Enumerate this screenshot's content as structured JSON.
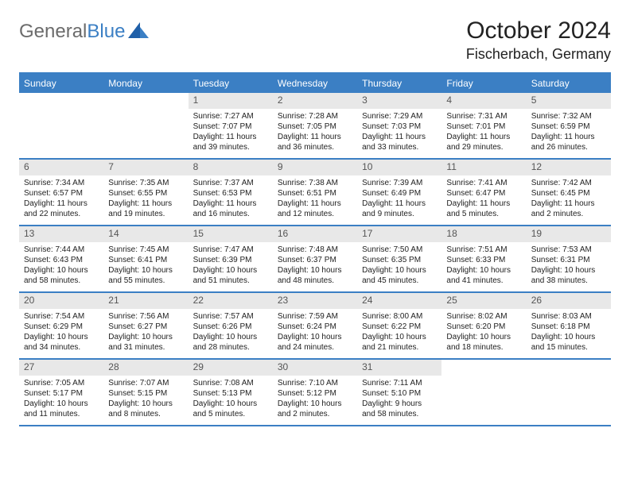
{
  "logo": {
    "text_gray": "General",
    "text_blue": "Blue"
  },
  "title": "October 2024",
  "location": "Fischerbach, Germany",
  "colors": {
    "header_bg": "#3b7fc4",
    "header_text": "#ffffff",
    "numbar_bg": "#e8e8e8",
    "border": "#3b7fc4",
    "logo_gray": "#6b6b6b",
    "logo_blue": "#3b7fc4"
  },
  "day_headers": [
    "Sunday",
    "Monday",
    "Tuesday",
    "Wednesday",
    "Thursday",
    "Friday",
    "Saturday"
  ],
  "weeks": [
    [
      {
        "num": "",
        "sunrise": "",
        "sunset": "",
        "daylight": ""
      },
      {
        "num": "",
        "sunrise": "",
        "sunset": "",
        "daylight": ""
      },
      {
        "num": "1",
        "sunrise": "Sunrise: 7:27 AM",
        "sunset": "Sunset: 7:07 PM",
        "daylight": "Daylight: 11 hours and 39 minutes."
      },
      {
        "num": "2",
        "sunrise": "Sunrise: 7:28 AM",
        "sunset": "Sunset: 7:05 PM",
        "daylight": "Daylight: 11 hours and 36 minutes."
      },
      {
        "num": "3",
        "sunrise": "Sunrise: 7:29 AM",
        "sunset": "Sunset: 7:03 PM",
        "daylight": "Daylight: 11 hours and 33 minutes."
      },
      {
        "num": "4",
        "sunrise": "Sunrise: 7:31 AM",
        "sunset": "Sunset: 7:01 PM",
        "daylight": "Daylight: 11 hours and 29 minutes."
      },
      {
        "num": "5",
        "sunrise": "Sunrise: 7:32 AM",
        "sunset": "Sunset: 6:59 PM",
        "daylight": "Daylight: 11 hours and 26 minutes."
      }
    ],
    [
      {
        "num": "6",
        "sunrise": "Sunrise: 7:34 AM",
        "sunset": "Sunset: 6:57 PM",
        "daylight": "Daylight: 11 hours and 22 minutes."
      },
      {
        "num": "7",
        "sunrise": "Sunrise: 7:35 AM",
        "sunset": "Sunset: 6:55 PM",
        "daylight": "Daylight: 11 hours and 19 minutes."
      },
      {
        "num": "8",
        "sunrise": "Sunrise: 7:37 AM",
        "sunset": "Sunset: 6:53 PM",
        "daylight": "Daylight: 11 hours and 16 minutes."
      },
      {
        "num": "9",
        "sunrise": "Sunrise: 7:38 AM",
        "sunset": "Sunset: 6:51 PM",
        "daylight": "Daylight: 11 hours and 12 minutes."
      },
      {
        "num": "10",
        "sunrise": "Sunrise: 7:39 AM",
        "sunset": "Sunset: 6:49 PM",
        "daylight": "Daylight: 11 hours and 9 minutes."
      },
      {
        "num": "11",
        "sunrise": "Sunrise: 7:41 AM",
        "sunset": "Sunset: 6:47 PM",
        "daylight": "Daylight: 11 hours and 5 minutes."
      },
      {
        "num": "12",
        "sunrise": "Sunrise: 7:42 AM",
        "sunset": "Sunset: 6:45 PM",
        "daylight": "Daylight: 11 hours and 2 minutes."
      }
    ],
    [
      {
        "num": "13",
        "sunrise": "Sunrise: 7:44 AM",
        "sunset": "Sunset: 6:43 PM",
        "daylight": "Daylight: 10 hours and 58 minutes."
      },
      {
        "num": "14",
        "sunrise": "Sunrise: 7:45 AM",
        "sunset": "Sunset: 6:41 PM",
        "daylight": "Daylight: 10 hours and 55 minutes."
      },
      {
        "num": "15",
        "sunrise": "Sunrise: 7:47 AM",
        "sunset": "Sunset: 6:39 PM",
        "daylight": "Daylight: 10 hours and 51 minutes."
      },
      {
        "num": "16",
        "sunrise": "Sunrise: 7:48 AM",
        "sunset": "Sunset: 6:37 PM",
        "daylight": "Daylight: 10 hours and 48 minutes."
      },
      {
        "num": "17",
        "sunrise": "Sunrise: 7:50 AM",
        "sunset": "Sunset: 6:35 PM",
        "daylight": "Daylight: 10 hours and 45 minutes."
      },
      {
        "num": "18",
        "sunrise": "Sunrise: 7:51 AM",
        "sunset": "Sunset: 6:33 PM",
        "daylight": "Daylight: 10 hours and 41 minutes."
      },
      {
        "num": "19",
        "sunrise": "Sunrise: 7:53 AM",
        "sunset": "Sunset: 6:31 PM",
        "daylight": "Daylight: 10 hours and 38 minutes."
      }
    ],
    [
      {
        "num": "20",
        "sunrise": "Sunrise: 7:54 AM",
        "sunset": "Sunset: 6:29 PM",
        "daylight": "Daylight: 10 hours and 34 minutes."
      },
      {
        "num": "21",
        "sunrise": "Sunrise: 7:56 AM",
        "sunset": "Sunset: 6:27 PM",
        "daylight": "Daylight: 10 hours and 31 minutes."
      },
      {
        "num": "22",
        "sunrise": "Sunrise: 7:57 AM",
        "sunset": "Sunset: 6:26 PM",
        "daylight": "Daylight: 10 hours and 28 minutes."
      },
      {
        "num": "23",
        "sunrise": "Sunrise: 7:59 AM",
        "sunset": "Sunset: 6:24 PM",
        "daylight": "Daylight: 10 hours and 24 minutes."
      },
      {
        "num": "24",
        "sunrise": "Sunrise: 8:00 AM",
        "sunset": "Sunset: 6:22 PM",
        "daylight": "Daylight: 10 hours and 21 minutes."
      },
      {
        "num": "25",
        "sunrise": "Sunrise: 8:02 AM",
        "sunset": "Sunset: 6:20 PM",
        "daylight": "Daylight: 10 hours and 18 minutes."
      },
      {
        "num": "26",
        "sunrise": "Sunrise: 8:03 AM",
        "sunset": "Sunset: 6:18 PM",
        "daylight": "Daylight: 10 hours and 15 minutes."
      }
    ],
    [
      {
        "num": "27",
        "sunrise": "Sunrise: 7:05 AM",
        "sunset": "Sunset: 5:17 PM",
        "daylight": "Daylight: 10 hours and 11 minutes."
      },
      {
        "num": "28",
        "sunrise": "Sunrise: 7:07 AM",
        "sunset": "Sunset: 5:15 PM",
        "daylight": "Daylight: 10 hours and 8 minutes."
      },
      {
        "num": "29",
        "sunrise": "Sunrise: 7:08 AM",
        "sunset": "Sunset: 5:13 PM",
        "daylight": "Daylight: 10 hours and 5 minutes."
      },
      {
        "num": "30",
        "sunrise": "Sunrise: 7:10 AM",
        "sunset": "Sunset: 5:12 PM",
        "daylight": "Daylight: 10 hours and 2 minutes."
      },
      {
        "num": "31",
        "sunrise": "Sunrise: 7:11 AM",
        "sunset": "Sunset: 5:10 PM",
        "daylight": "Daylight: 9 hours and 58 minutes."
      },
      {
        "num": "",
        "sunrise": "",
        "sunset": "",
        "daylight": ""
      },
      {
        "num": "",
        "sunrise": "",
        "sunset": "",
        "daylight": ""
      }
    ]
  ]
}
